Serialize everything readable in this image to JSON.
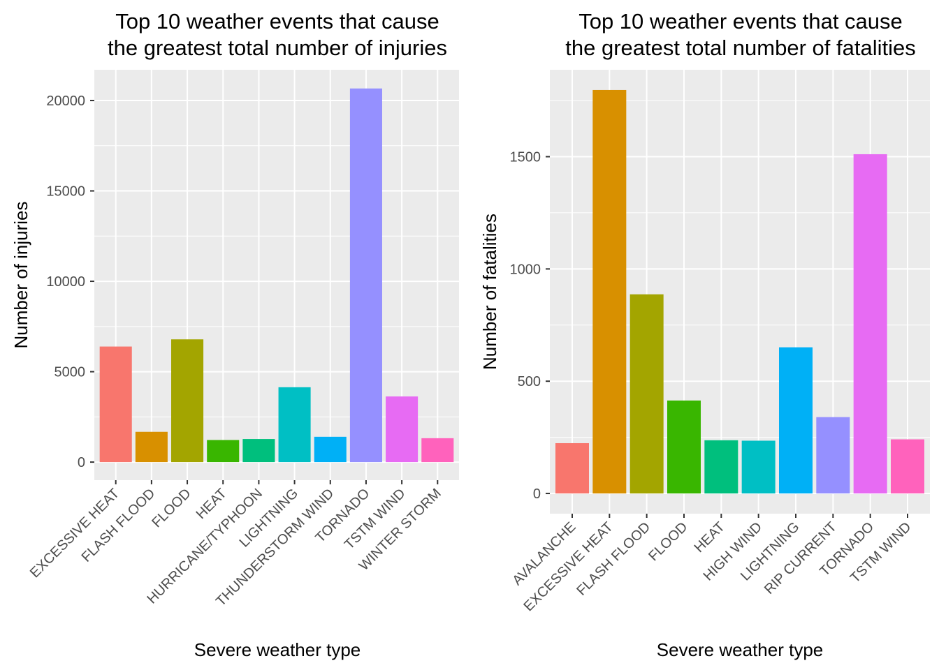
{
  "chart_data": [
    {
      "type": "bar",
      "title": "Top 10 weather events that cause\nthe greatest total number of injuries",
      "xlabel": "Severe weather type",
      "ylabel": "Number of injuries",
      "categories": [
        "EXCESSIVE HEAT",
        "FLASH FLOOD",
        "FLOOD",
        "HEAT",
        "HURRICANE/TYPHOON",
        "LIGHTNING",
        "THUNDERSTORM WIND",
        "TORNADO",
        "TSTM WIND",
        "WINTER STORM"
      ],
      "values": [
        6391,
        1674,
        6789,
        1222,
        1275,
        4140,
        1400,
        20667,
        3631,
        1321
      ],
      "colors": [
        "#F8766D",
        "#D89000",
        "#A3A500",
        "#39B600",
        "#00BF7D",
        "#00BFC4",
        "#00B0F6",
        "#9590FF",
        "#E76BF3",
        "#FF62BC"
      ],
      "yticks": [
        0,
        5000,
        10000,
        15000,
        20000
      ],
      "ylim": [
        -1000,
        21700
      ],
      "grid": true,
      "legend": "none"
    },
    {
      "type": "bar",
      "title": "Top 10 weather events that cause\nthe greatest total number of fatalities",
      "xlabel": "Severe weather type",
      "ylabel": "Number of fatalities",
      "categories": [
        "AVALANCHE",
        "EXCESSIVE HEAT",
        "FLASH FLOOD",
        "FLOOD",
        "HEAT",
        "HIGH WIND",
        "LIGHTNING",
        "RIP CURRENT",
        "TORNADO",
        "TSTM WIND"
      ],
      "values": [
        224,
        1797,
        887,
        414,
        237,
        235,
        651,
        340,
        1511,
        241
      ],
      "colors": [
        "#F8766D",
        "#D89000",
        "#A3A500",
        "#39B600",
        "#00BF7D",
        "#00BFC4",
        "#00B0F6",
        "#9590FF",
        "#E76BF3",
        "#FF62BC"
      ],
      "yticks": [
        0,
        500,
        1000,
        1500
      ],
      "ylim": [
        -90,
        1887
      ],
      "grid": true,
      "legend": "none"
    }
  ]
}
